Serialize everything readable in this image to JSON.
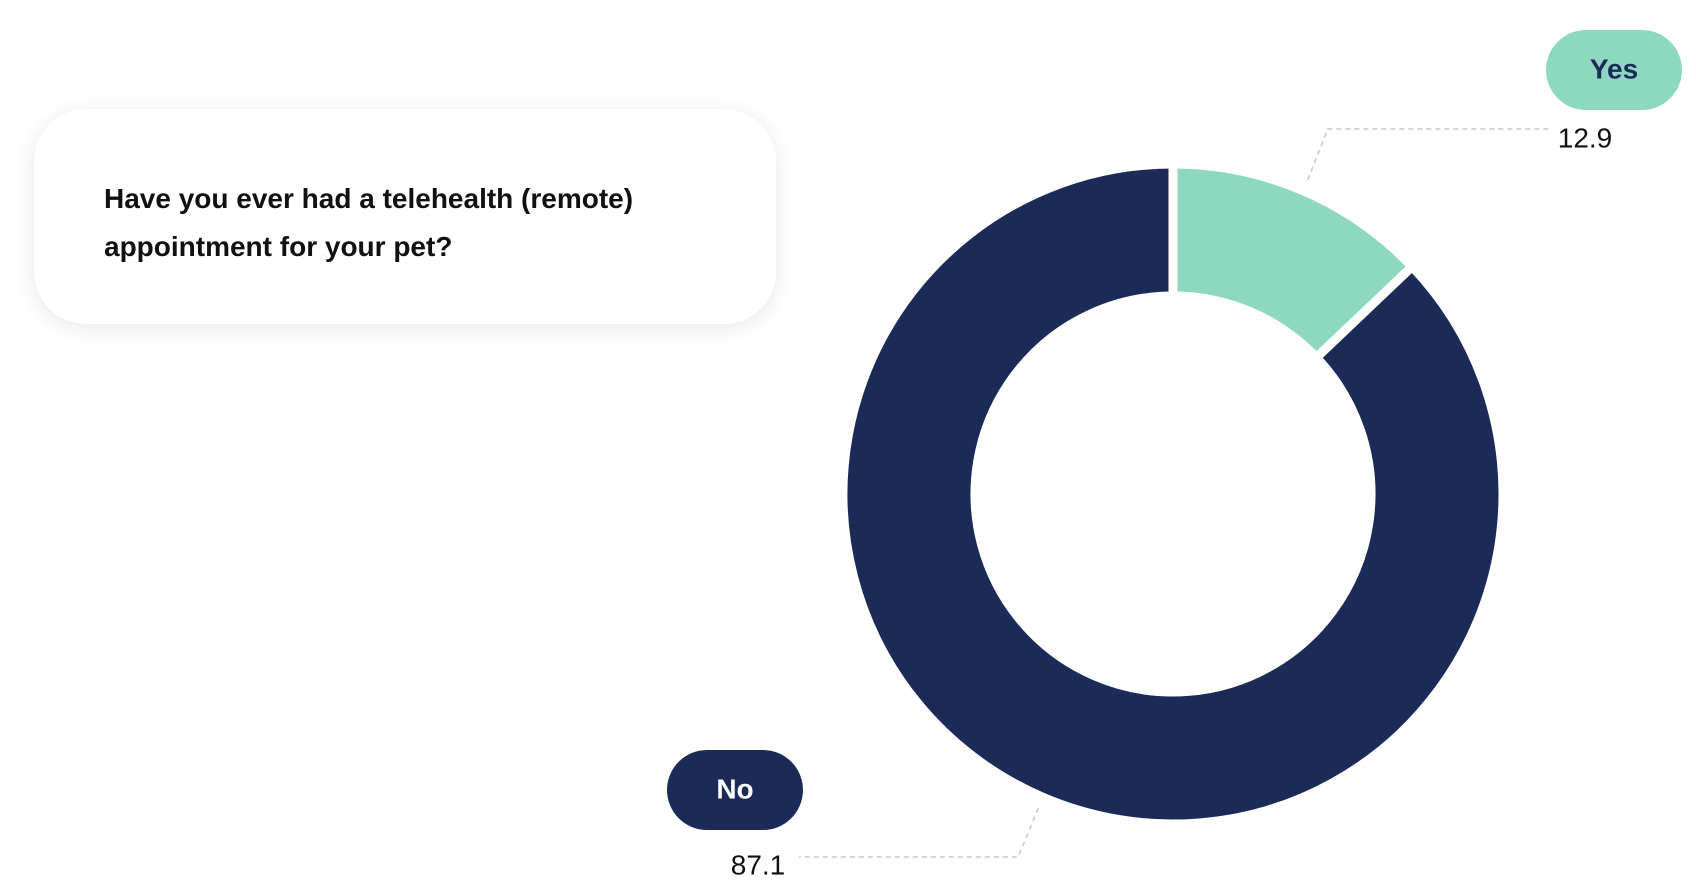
{
  "chart_data": {
    "type": "donut",
    "title": "Have you ever had a telehealth (remote) appointment for your pet?",
    "categories": [
      "Yes",
      "No"
    ],
    "values": [
      12.9,
      87.1
    ],
    "colors": [
      "#8fd8c0",
      "#1b2a57"
    ]
  }
}
